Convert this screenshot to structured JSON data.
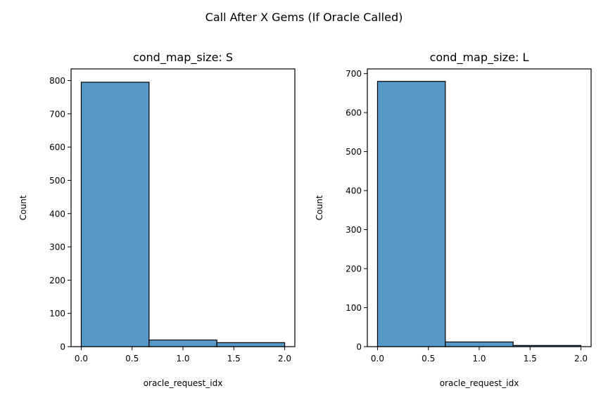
{
  "suptitle": "Call After X Gems (If Oracle Called)",
  "bar_color": "#5499c7",
  "edge_color": "#000000",
  "chart_data": [
    {
      "type": "bar",
      "title": "cond_map_size: S",
      "xlabel": "oracle_request_idx",
      "ylabel": "Count",
      "bin_edges": [
        0,
        0.6667,
        1.3333,
        2.0
      ],
      "values": [
        795,
        20,
        12
      ],
      "xlim": [
        -0.1,
        2.1
      ],
      "ylim": [
        0,
        835
      ],
      "xticks": [
        0.0,
        0.5,
        1.0,
        1.5,
        2.0
      ],
      "xtick_labels": [
        "0.0",
        "0.5",
        "1.0",
        "1.5",
        "2.0"
      ],
      "yticks": [
        0,
        100,
        200,
        300,
        400,
        500,
        600,
        700,
        800
      ],
      "ytick_labels": [
        "0",
        "100",
        "200",
        "300",
        "400",
        "500",
        "600",
        "700",
        "800"
      ]
    },
    {
      "type": "bar",
      "title": "cond_map_size: L",
      "xlabel": "oracle_request_idx",
      "ylabel": "Count",
      "bin_edges": [
        0,
        0.6667,
        1.3333,
        2.0
      ],
      "values": [
        680,
        12,
        3
      ],
      "xlim": [
        -0.1,
        2.1
      ],
      "ylim": [
        0,
        712
      ],
      "xticks": [
        0.0,
        0.5,
        1.0,
        1.5,
        2.0
      ],
      "xtick_labels": [
        "0.0",
        "0.5",
        "1.0",
        "1.5",
        "2.0"
      ],
      "yticks": [
        0,
        100,
        200,
        300,
        400,
        500,
        600,
        700
      ],
      "ytick_labels": [
        "0",
        "100",
        "200",
        "300",
        "400",
        "500",
        "600",
        "700"
      ]
    }
  ]
}
